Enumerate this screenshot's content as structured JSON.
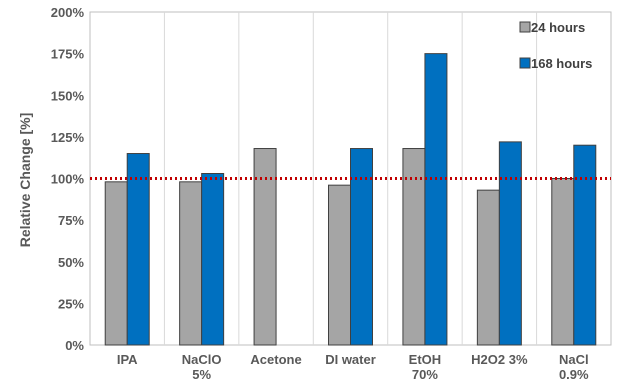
{
  "chart_data": {
    "type": "bar",
    "categories": [
      [
        "IPA"
      ],
      [
        "NaClO",
        "5%"
      ],
      [
        "Acetone"
      ],
      [
        "DI water"
      ],
      [
        "EtOH",
        "70%"
      ],
      [
        "H2O2 3%"
      ],
      [
        "NaCl",
        "0.9%"
      ]
    ],
    "series": [
      {
        "name": "24 hours",
        "color": "#A5A5A5",
        "values": [
          98,
          98,
          118,
          96,
          118,
          93,
          100
        ]
      },
      {
        "name": "168 hours",
        "color": "#0070C0",
        "values": [
          115,
          103,
          null,
          118,
          175,
          122,
          120
        ]
      }
    ],
    "ylabel": "Relative Change [%]",
    "xlabel": "",
    "ylim": [
      0,
      200
    ],
    "yticks": [
      "0%",
      "25%",
      "50%",
      "75%",
      "100%",
      "125%",
      "150%",
      "175%",
      "200%"
    ],
    "reference_line": {
      "value": 100,
      "color": "#C00000",
      "style": "dotted"
    },
    "legend_position": "top-right",
    "grid": "vertical category separators"
  }
}
